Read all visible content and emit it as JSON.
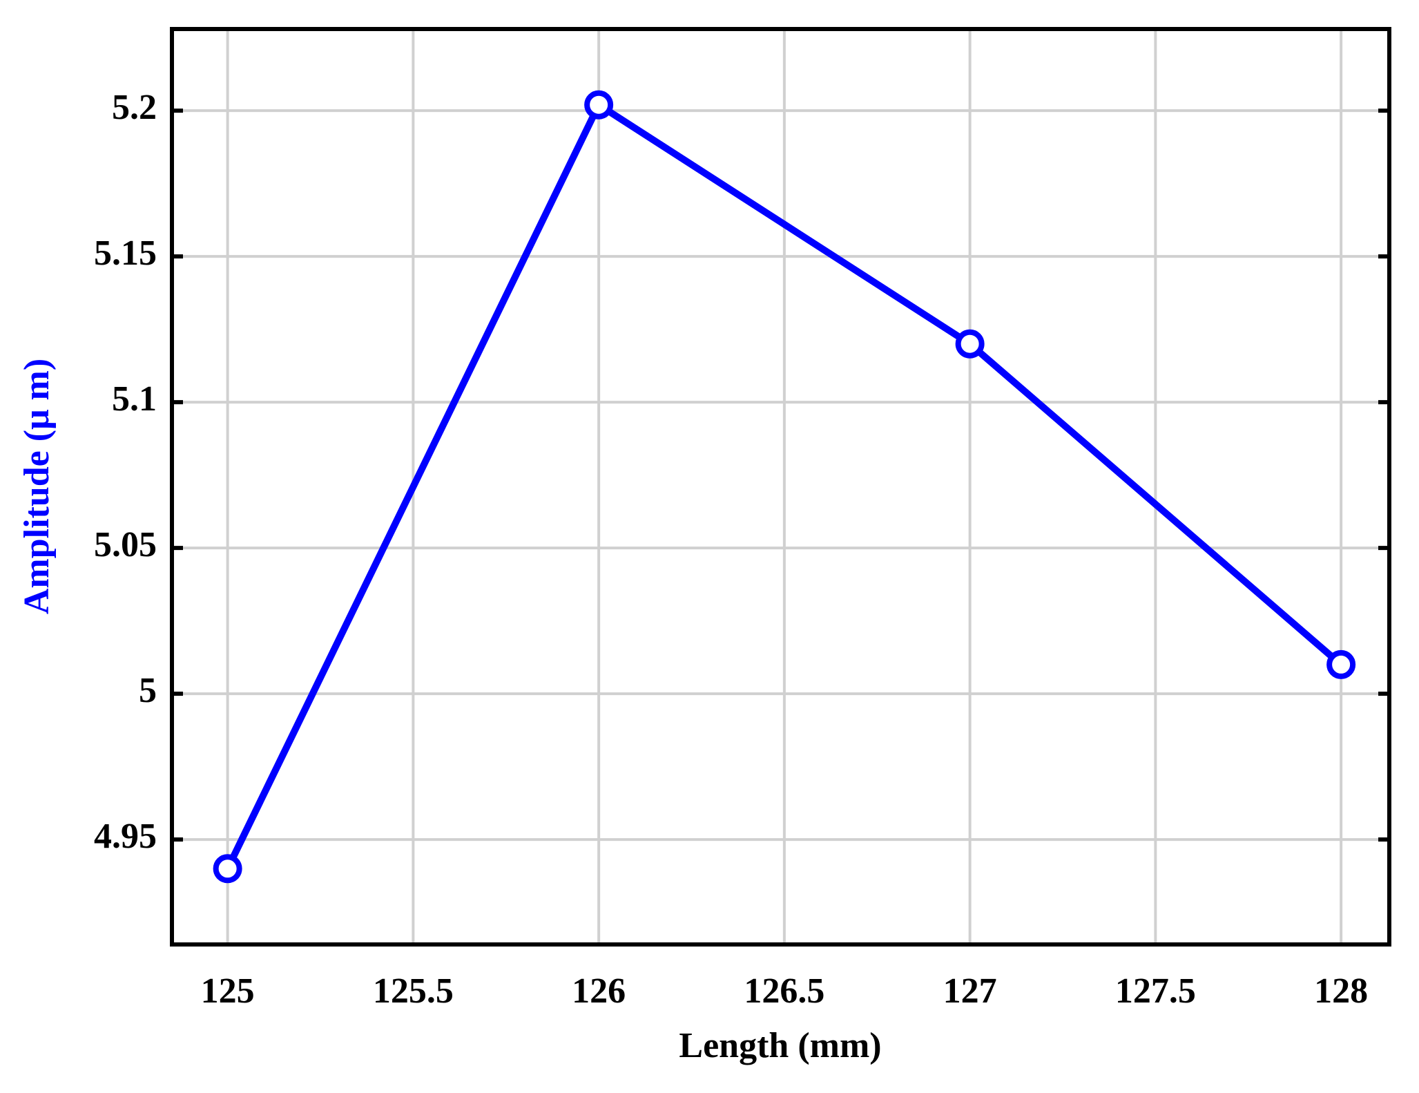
{
  "chart_data": {
    "type": "line",
    "xlabel": "Length (mm)",
    "ylabel": "Amplitude (μ m)",
    "x": [
      125,
      126,
      127,
      128
    ],
    "series": [
      {
        "name": "Amplitude",
        "color": "#0000ff",
        "values": [
          4.94,
          5.202,
          5.12,
          5.01
        ]
      }
    ],
    "xlim": [
      124.85,
      128.13
    ],
    "ylim": [
      4.914,
      5.228
    ],
    "xticks": [
      125,
      125.5,
      126,
      126.5,
      127,
      127.5,
      128
    ],
    "yticks": [
      4.95,
      5,
      5.05,
      5.1,
      5.15,
      5.2
    ],
    "grid": true
  }
}
